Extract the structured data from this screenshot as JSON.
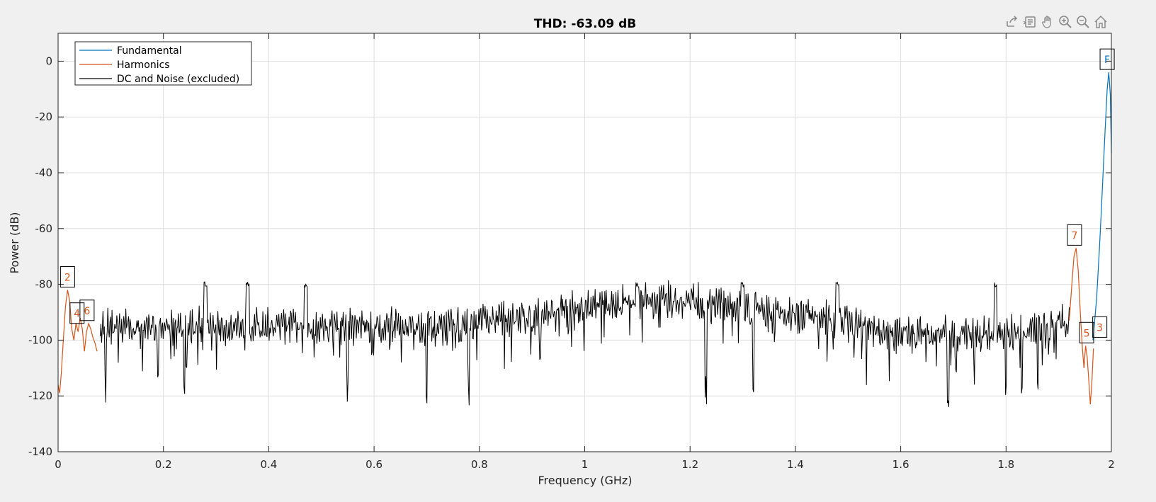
{
  "toolbar": [
    {
      "icon": "export-icon"
    },
    {
      "icon": "data-tips-icon"
    },
    {
      "icon": "pan-icon"
    },
    {
      "icon": "zoom-in-icon"
    },
    {
      "icon": "zoom-out-icon"
    },
    {
      "icon": "home-icon"
    }
  ],
  "chart_data": {
    "type": "line",
    "title": "THD: -63.09 dB",
    "xlabel": "Frequency (GHz)",
    "ylabel": "Power (dB)",
    "xlim": [
      0,
      2
    ],
    "ylim": [
      -140,
      10
    ],
    "xticks": [
      0,
      0.2,
      0.4,
      0.6,
      0.8,
      1,
      1.2,
      1.4,
      1.6,
      1.8,
      2
    ],
    "xtick_labels": [
      "0",
      "0.2",
      "0.4",
      "0.6",
      "0.8",
      "1",
      "1.2",
      "1.4",
      "1.6",
      "1.8",
      "2"
    ],
    "yticks": [
      -140,
      -120,
      -100,
      -80,
      -60,
      -40,
      -20,
      0
    ],
    "ytick_labels": [
      "-140",
      "-120",
      "-100",
      "-80",
      "-60",
      "-40",
      "-20",
      "0"
    ],
    "grid": true,
    "legend_position": "top-left",
    "legend": [
      "Fundamental",
      "Harmonics",
      "DC and Noise (excluded)"
    ],
    "colors": {
      "fundamental": "#0072bd",
      "harmonics": "#d95319",
      "noise": "#000000"
    },
    "series": [
      {
        "key": "fundamental",
        "x": [
          1.965,
          1.972,
          1.978,
          1.983,
          1.988,
          1.992,
          1.995,
          1.998,
          2.0
        ],
        "y": [
          -100,
          -85,
          -65,
          -45,
          -25,
          -10,
          -4,
          -12,
          -33
        ]
      },
      {
        "key": "harmonics_low",
        "x": [
          0,
          0.003,
          0.006,
          0.01,
          0.014,
          0.018,
          0.022,
          0.026,
          0.03,
          0.034,
          0.038,
          0.042,
          0.046,
          0.05,
          0.054,
          0.058,
          0.062,
          0.066,
          0.07,
          0.074
        ],
        "y": [
          -116,
          -119,
          -112,
          -100,
          -88,
          -82,
          -86,
          -96,
          -100,
          -94,
          -97,
          -92,
          -96,
          -104,
          -97,
          -94,
          -96,
          -99,
          -101,
          -104
        ]
      },
      {
        "key": "harmonics_high",
        "x": [
          1.92,
          1.925,
          1.929,
          1.933,
          1.937,
          1.941,
          1.945,
          1.948,
          1.951,
          1.954,
          1.957,
          1.96,
          1.963,
          1.966
        ],
        "y": [
          -93,
          -80,
          -70,
          -67,
          -75,
          -90,
          -103,
          -110,
          -102,
          -106,
          -114,
          -123,
          -115,
          -103
        ]
      },
      {
        "key": "noise",
        "x": [
          0.08,
          1.92
        ],
        "y": [
          -94,
          -80
        ],
        "peaks": [
          0.28,
          0.36,
          0.47,
          1.1,
          1.3,
          1.48,
          1.78
        ],
        "dips": [
          0.09,
          0.19,
          0.24,
          0.55,
          0.7,
          0.78,
          1.23,
          1.32,
          1.69,
          1.8,
          1.83,
          1.86
        ]
      }
    ],
    "annotations": [
      {
        "label": "F",
        "x": 1.992,
        "y": -4,
        "series": "fundamental"
      },
      {
        "label": "2",
        "x": 0.018,
        "y": -82,
        "series": "harmonics"
      },
      {
        "label": "3",
        "x": 1.978,
        "y": -100,
        "series": "harmonics"
      },
      {
        "label": "4",
        "x": 0.036,
        "y": -95,
        "series": "harmonics"
      },
      {
        "label": "5",
        "x": 1.953,
        "y": -102,
        "series": "harmonics"
      },
      {
        "label": "6",
        "x": 0.055,
        "y": -94,
        "series": "harmonics"
      },
      {
        "label": "7",
        "x": 1.93,
        "y": -67,
        "series": "harmonics"
      }
    ]
  }
}
